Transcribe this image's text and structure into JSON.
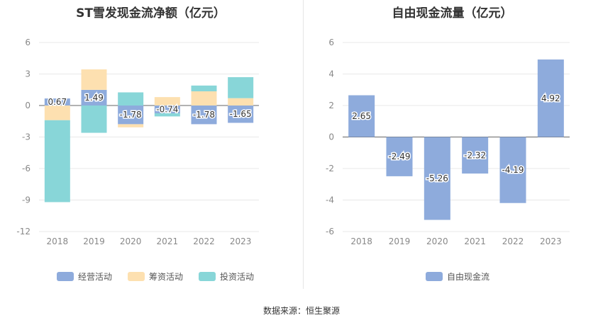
{
  "colors": {
    "operating": "#8eabdc",
    "financing": "#fde0b0",
    "investing": "#88d6d8",
    "fcf": "#8eabdc",
    "grid": "#e8e8e8",
    "axis_text": "#888888",
    "label_text": "#333333"
  },
  "chart_data": [
    {
      "type": "bar",
      "stacked": true,
      "title": "ST雪发现金流净额（亿元）",
      "categories": [
        "2018",
        "2019",
        "2020",
        "2021",
        "2022",
        "2023"
      ],
      "series": [
        {
          "name": "经营活动",
          "values": [
            0.67,
            1.49,
            -1.78,
            -0.74,
            -1.78,
            -1.65
          ]
        },
        {
          "name": "筹资活动",
          "values": [
            -1.4,
            1.95,
            -0.3,
            0.8,
            1.35,
            0.7
          ]
        },
        {
          "name": "投资活动",
          "values": [
            -7.8,
            -2.6,
            1.25,
            -0.3,
            0.55,
            2.0
          ]
        }
      ],
      "data_labels": [
        "0.67",
        "1.49",
        "-1.78",
        "-0.74",
        "-1.78",
        "-1.65"
      ],
      "yticks": [
        "6",
        "3",
        "0",
        "-3",
        "-6",
        "-9",
        "-12"
      ],
      "ylim": [
        -12,
        6
      ],
      "legend": "bottom"
    },
    {
      "type": "bar",
      "title": "自由现金流量（亿元）",
      "categories": [
        "2018",
        "2019",
        "2020",
        "2021",
        "2022",
        "2023"
      ],
      "series": [
        {
          "name": "自由现金流",
          "values": [
            2.65,
            -2.49,
            -5.26,
            -2.32,
            -4.19,
            4.92
          ]
        }
      ],
      "data_labels": [
        "2.65",
        "-2.49",
        "-5.26",
        "-2.32",
        "-4.19",
        "4.92"
      ],
      "yticks": [
        "6",
        "4",
        "2",
        "0",
        "-2",
        "-4",
        "-6"
      ],
      "ylim": [
        -6,
        6
      ],
      "legend": "bottom"
    }
  ],
  "source": "数据来源：恒生聚源"
}
